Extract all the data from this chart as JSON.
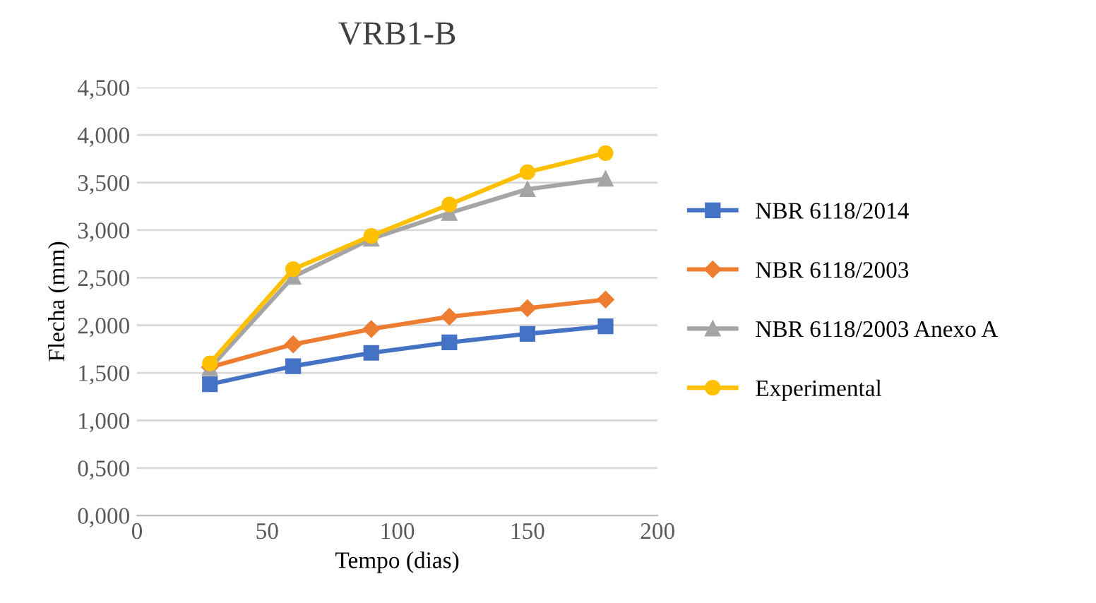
{
  "chart_data": {
    "type": "line",
    "title": "VRB1-B",
    "xlabel": "Tempo (dias)",
    "ylabel": "Flecha (mm)",
    "x": [
      28,
      60,
      90,
      120,
      150,
      180
    ],
    "series": [
      {
        "name": "NBR 6118/2014",
        "color": "#4472c4",
        "marker": "square",
        "values": [
          1.38,
          1.57,
          1.71,
          1.82,
          1.91,
          1.99
        ]
      },
      {
        "name": "NBR 6118/2003",
        "color": "#ed7d31",
        "marker": "diamond",
        "values": [
          1.56,
          1.8,
          1.96,
          2.09,
          2.18,
          2.27
        ]
      },
      {
        "name": "NBR 6118/2003 Anexo A",
        "color": "#a5a5a5",
        "marker": "triangle",
        "values": [
          1.55,
          2.51,
          2.91,
          3.18,
          3.43,
          3.54
        ]
      },
      {
        "name": "Experimental",
        "color": "#ffc000",
        "marker": "circle",
        "values": [
          1.6,
          2.59,
          2.94,
          3.27,
          3.61,
          3.81
        ]
      }
    ],
    "xlim": [
      0,
      200
    ],
    "xticks": [
      0,
      50,
      100,
      150,
      200
    ],
    "ylim": [
      0,
      4.5
    ],
    "yticks": [
      {
        "value": 0,
        "label": "0,000"
      },
      {
        "value": 0.5,
        "label": "0,500"
      },
      {
        "value": 1,
        "label": "1,000"
      },
      {
        "value": 1.5,
        "label": "1,500"
      },
      {
        "value": 2,
        "label": "2,000"
      },
      {
        "value": 2.5,
        "label": "2,500"
      },
      {
        "value": 3,
        "label": "3,000"
      },
      {
        "value": 3.5,
        "label": "3,500"
      },
      {
        "value": 4,
        "label": "4,000"
      },
      {
        "value": 4.5,
        "label": "4,500"
      }
    ],
    "grid": "y",
    "legend": "right",
    "line_style": "solid"
  }
}
